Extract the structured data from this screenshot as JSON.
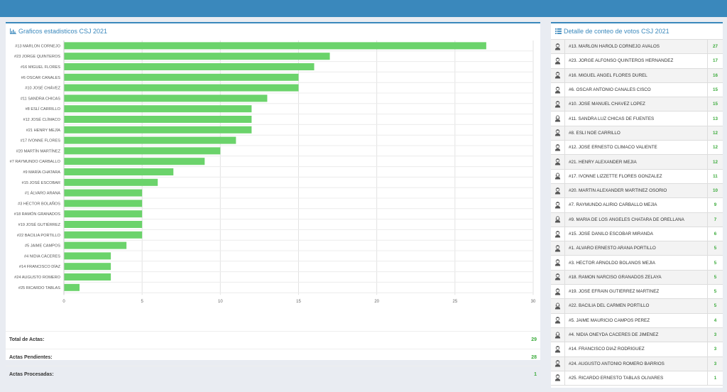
{
  "chart_panel": {
    "title": "Graficos estadisticos CSJ 2021",
    "icon": "bar-chart-icon"
  },
  "list_panel": {
    "title": "Detalle de conteo de votos CSJ 2021",
    "icon": "list-icon"
  },
  "colors": {
    "header": "#3a88bc",
    "bar": "#6bd36b",
    "count": "#3bab3b"
  },
  "chart_data": {
    "type": "bar",
    "orientation": "horizontal",
    "categories": [
      "#13 MARLON CORNEJO",
      "#23 JORGE QUINTEROS",
      "#16 MIGUEL FLORES",
      "#6 OSCAR CANALES",
      "#10 JOSÉ CHÁVEZ",
      "#11 SANDRA CHICAS",
      "#8 ESLÍ CARRILLO",
      "#12 JOSÉ CLÍMACO",
      "#21 HENRY MEJÍA",
      "#17 IVONNE FLORES",
      "#20 MARTÍN MARTÍNEZ",
      "#7 RAYMUNDO CARBALLO",
      "#9 MARÍA CHATARA",
      "#15 JOSÉ ESCOBAR",
      "#1 ÁLVARO ARANA",
      "#3 HÉCTOR BOLAÑOS",
      "#18 RAMÓN GRANADOS",
      "#19 JOSÉ GUTIÉRREZ",
      "#22 BACILIA PORTILLO",
      "#5 JAIME CAMPOS",
      "#4 NIDIA CÁCERES",
      "#14 FRANCISCO DÍAZ",
      "#24 AUGUSTO ROMERO",
      "#25 RICARDO TABLAS"
    ],
    "values": [
      27,
      17,
      16,
      15,
      15,
      13,
      12,
      12,
      12,
      11,
      10,
      9,
      7,
      6,
      5,
      5,
      5,
      5,
      5,
      4,
      3,
      3,
      3,
      1
    ],
    "xlim": [
      0,
      30
    ],
    "xticks": [
      0,
      5,
      10,
      15,
      20,
      25,
      30
    ],
    "grid": true,
    "legend": "none"
  },
  "stats": [
    {
      "label": "Total de Actas:",
      "value": "29"
    },
    {
      "label": "Actas Pendientes:",
      "value": "28"
    },
    {
      "label": "Actas Procesadas:",
      "value": "1"
    }
  ],
  "candidates": [
    {
      "name": "#13. MARLON HAROLD CORNEJO ÁVALOS",
      "votes": "27",
      "avatar": "male-avatar-icon"
    },
    {
      "name": "#23. JORGE ALFONSO QUINTEROS HERNÁNDEZ",
      "votes": "17",
      "avatar": "male-avatar-icon"
    },
    {
      "name": "#16. MIGUEL ÁNGEL FLORES DUREL",
      "votes": "16",
      "avatar": "male-avatar-icon"
    },
    {
      "name": "#6. OSCAR ANTONIO CANALES CISCO",
      "votes": "15",
      "avatar": "male-avatar-icon"
    },
    {
      "name": "#10. JOSÉ MANUEL CHÁVEZ LÓPEZ",
      "votes": "15",
      "avatar": "male-avatar-icon"
    },
    {
      "name": "#11. SANDRA LUZ CHICAS DE FUENTES",
      "votes": "13",
      "avatar": "female-avatar-icon"
    },
    {
      "name": "#8. ESLÍ NOÉ CARRILLO",
      "votes": "12",
      "avatar": "male-avatar-icon"
    },
    {
      "name": "#12. JOSÉ ERNESTO CLÍMACO VALIENTE",
      "votes": "12",
      "avatar": "male-avatar-icon"
    },
    {
      "name": "#21. HENRY ALEXANDER MEJÍA",
      "votes": "12",
      "avatar": "male-avatar-icon"
    },
    {
      "name": "#17. IVONNE LIZZETTE FLORES GONZÁLEZ",
      "votes": "11",
      "avatar": "female-avatar-icon"
    },
    {
      "name": "#20. MARTÍN ALEXANDER MARTÍNEZ OSORIO",
      "votes": "10",
      "avatar": "male-avatar-icon"
    },
    {
      "name": "#7. RAYMUNDO ALIRIO CARBALLO MEJÍA",
      "votes": "9",
      "avatar": "male-avatar-icon"
    },
    {
      "name": "#9. MARÍA DE LOS ÁNGELES CHATARA DE ORELLANA",
      "votes": "7",
      "avatar": "female-avatar-icon"
    },
    {
      "name": "#15. JOSÉ DANILO ESCOBAR MIRANDA",
      "votes": "6",
      "avatar": "male-avatar-icon"
    },
    {
      "name": "#1. ÁLVARO ERNESTO ARANA PORTILLO",
      "votes": "5",
      "avatar": "male-avatar-icon"
    },
    {
      "name": "#3. HÉCTOR ARNOLDO BOLAÑOS MEJÍA",
      "votes": "5",
      "avatar": "male-avatar-icon"
    },
    {
      "name": "#18. RAMÓN NARCISO GRANADOS ZELAYA",
      "votes": "5",
      "avatar": "male-avatar-icon"
    },
    {
      "name": "#19. JOSÉ EFRAÍN GUTIÉRREZ MARTÍNEZ",
      "votes": "5",
      "avatar": "male-avatar-icon"
    },
    {
      "name": "#22. BACILIA DEL CARMEN PORTILLO",
      "votes": "5",
      "avatar": "female-avatar-icon"
    },
    {
      "name": "#5. JAIME MAURICIO CAMPOS PÉREZ",
      "votes": "4",
      "avatar": "male-avatar-icon"
    },
    {
      "name": "#4. NIDIA ONEYDA CÁCERES DE JIMÉNEZ",
      "votes": "3",
      "avatar": "female-avatar-icon"
    },
    {
      "name": "#14. FRANCISCO DÍAZ RODRÍGUEZ",
      "votes": "3",
      "avatar": "male-avatar-icon"
    },
    {
      "name": "#24. AUGUSTO ANTONIO ROMERO BARRIOS",
      "votes": "3",
      "avatar": "male-avatar-icon"
    },
    {
      "name": "#25. RICARDO ERNESTO TABLAS OLIVARES",
      "votes": "1",
      "avatar": "male-avatar-icon"
    }
  ]
}
